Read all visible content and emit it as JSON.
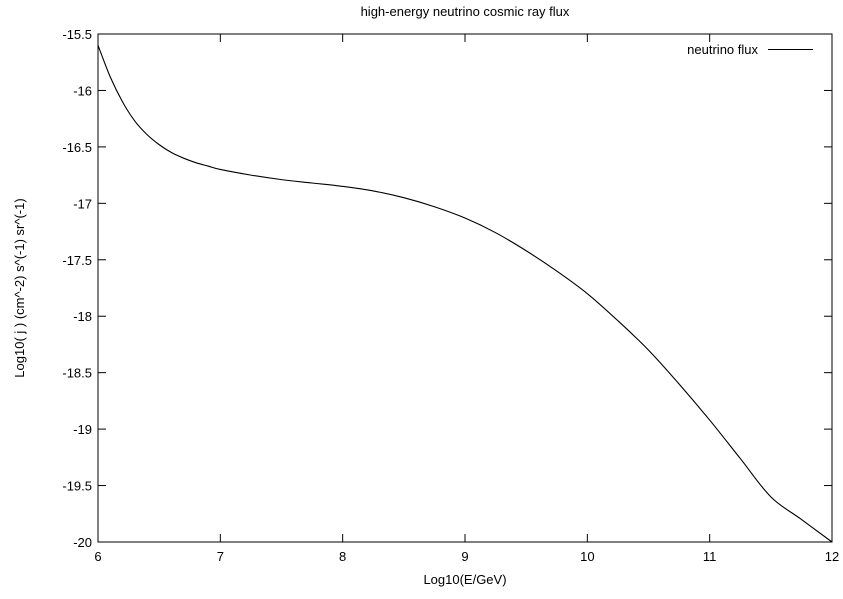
{
  "chart_data": {
    "type": "line",
    "title": "high-energy neutrino cosmic ray flux",
    "xlabel": "Log10(E/GeV)",
    "ylabel": "Log10( j ) (cm^-2) s^(-1) sr^(-1)",
    "xlim": [
      6,
      12
    ],
    "ylim": [
      -20,
      -15.5
    ],
    "xticks": [
      6,
      7,
      8,
      9,
      10,
      11,
      12
    ],
    "yticks": [
      -20,
      -19.5,
      -19,
      -18.5,
      -18,
      -17.5,
      -17,
      -16.5,
      -16,
      -15.5
    ],
    "xtick_labels": [
      "6",
      "7",
      "8",
      "9",
      "10",
      "11",
      "12"
    ],
    "ytick_labels": [
      "-20",
      "-19.5",
      "-19",
      "-18.5",
      "-18",
      "-17.5",
      "-17",
      "-16.5",
      "-16",
      "-15.5"
    ],
    "grid": false,
    "legend_position": "top-right",
    "series": [
      {
        "name": "neutrino flux",
        "color": "#000000",
        "x": [
          6.0,
          6.1,
          6.2,
          6.3,
          6.4,
          6.5,
          6.6,
          6.7,
          6.8,
          6.9,
          7.0,
          7.25,
          7.5,
          7.75,
          8.0,
          8.25,
          8.5,
          8.75,
          9.0,
          9.25,
          9.5,
          9.75,
          10.0,
          10.25,
          10.5,
          10.75,
          11.0,
          11.25,
          11.5,
          11.75,
          12.0
        ],
        "y": [
          -15.6,
          -15.88,
          -16.1,
          -16.27,
          -16.39,
          -16.48,
          -16.55,
          -16.6,
          -16.64,
          -16.67,
          -16.7,
          -16.75,
          -16.79,
          -16.82,
          -16.85,
          -16.89,
          -16.95,
          -17.03,
          -17.13,
          -17.26,
          -17.42,
          -17.6,
          -17.8,
          -18.04,
          -18.3,
          -18.6,
          -18.92,
          -19.26,
          -19.6,
          -19.8,
          -20.0
        ]
      }
    ]
  }
}
